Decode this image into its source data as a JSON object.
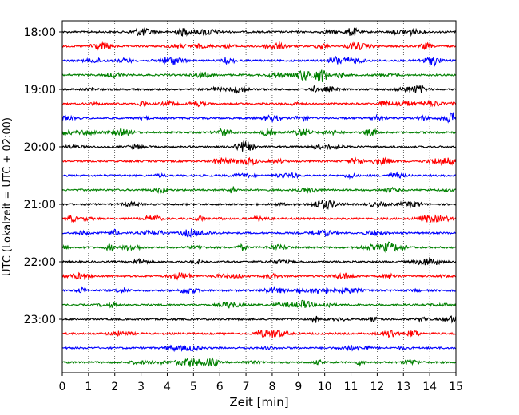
{
  "chart_data": {
    "type": "line",
    "title": "",
    "xlabel": "Zeit  [min]",
    "ylabel": "UTC (Lokalzeit = UTC + 02:00)",
    "xlim": [
      0,
      15
    ],
    "x_ticks": [
      "0",
      "1",
      "2",
      "3",
      "4",
      "5",
      "6",
      "7",
      "8",
      "9",
      "10",
      "11",
      "12",
      "13",
      "14",
      "15"
    ],
    "y_tick_labels": [
      "18:00",
      "19:00",
      "20:00",
      "21:00",
      "22:00",
      "23:00"
    ],
    "grid": "vertical dotted lines at each minute",
    "trace_colors": [
      "#000000",
      "#ff0000",
      "#0000ff",
      "#008000"
    ],
    "trace_starts_utc": [
      "18:00",
      "18:15",
      "18:30",
      "18:45",
      "19:00",
      "19:15",
      "19:30",
      "19:45",
      "20:00",
      "20:15",
      "20:30",
      "20:45",
      "21:00",
      "21:15",
      "21:30",
      "21:45",
      "22:00",
      "22:15",
      "22:30",
      "22:45",
      "23:00",
      "23:15",
      "23:30",
      "23:45"
    ]
  }
}
